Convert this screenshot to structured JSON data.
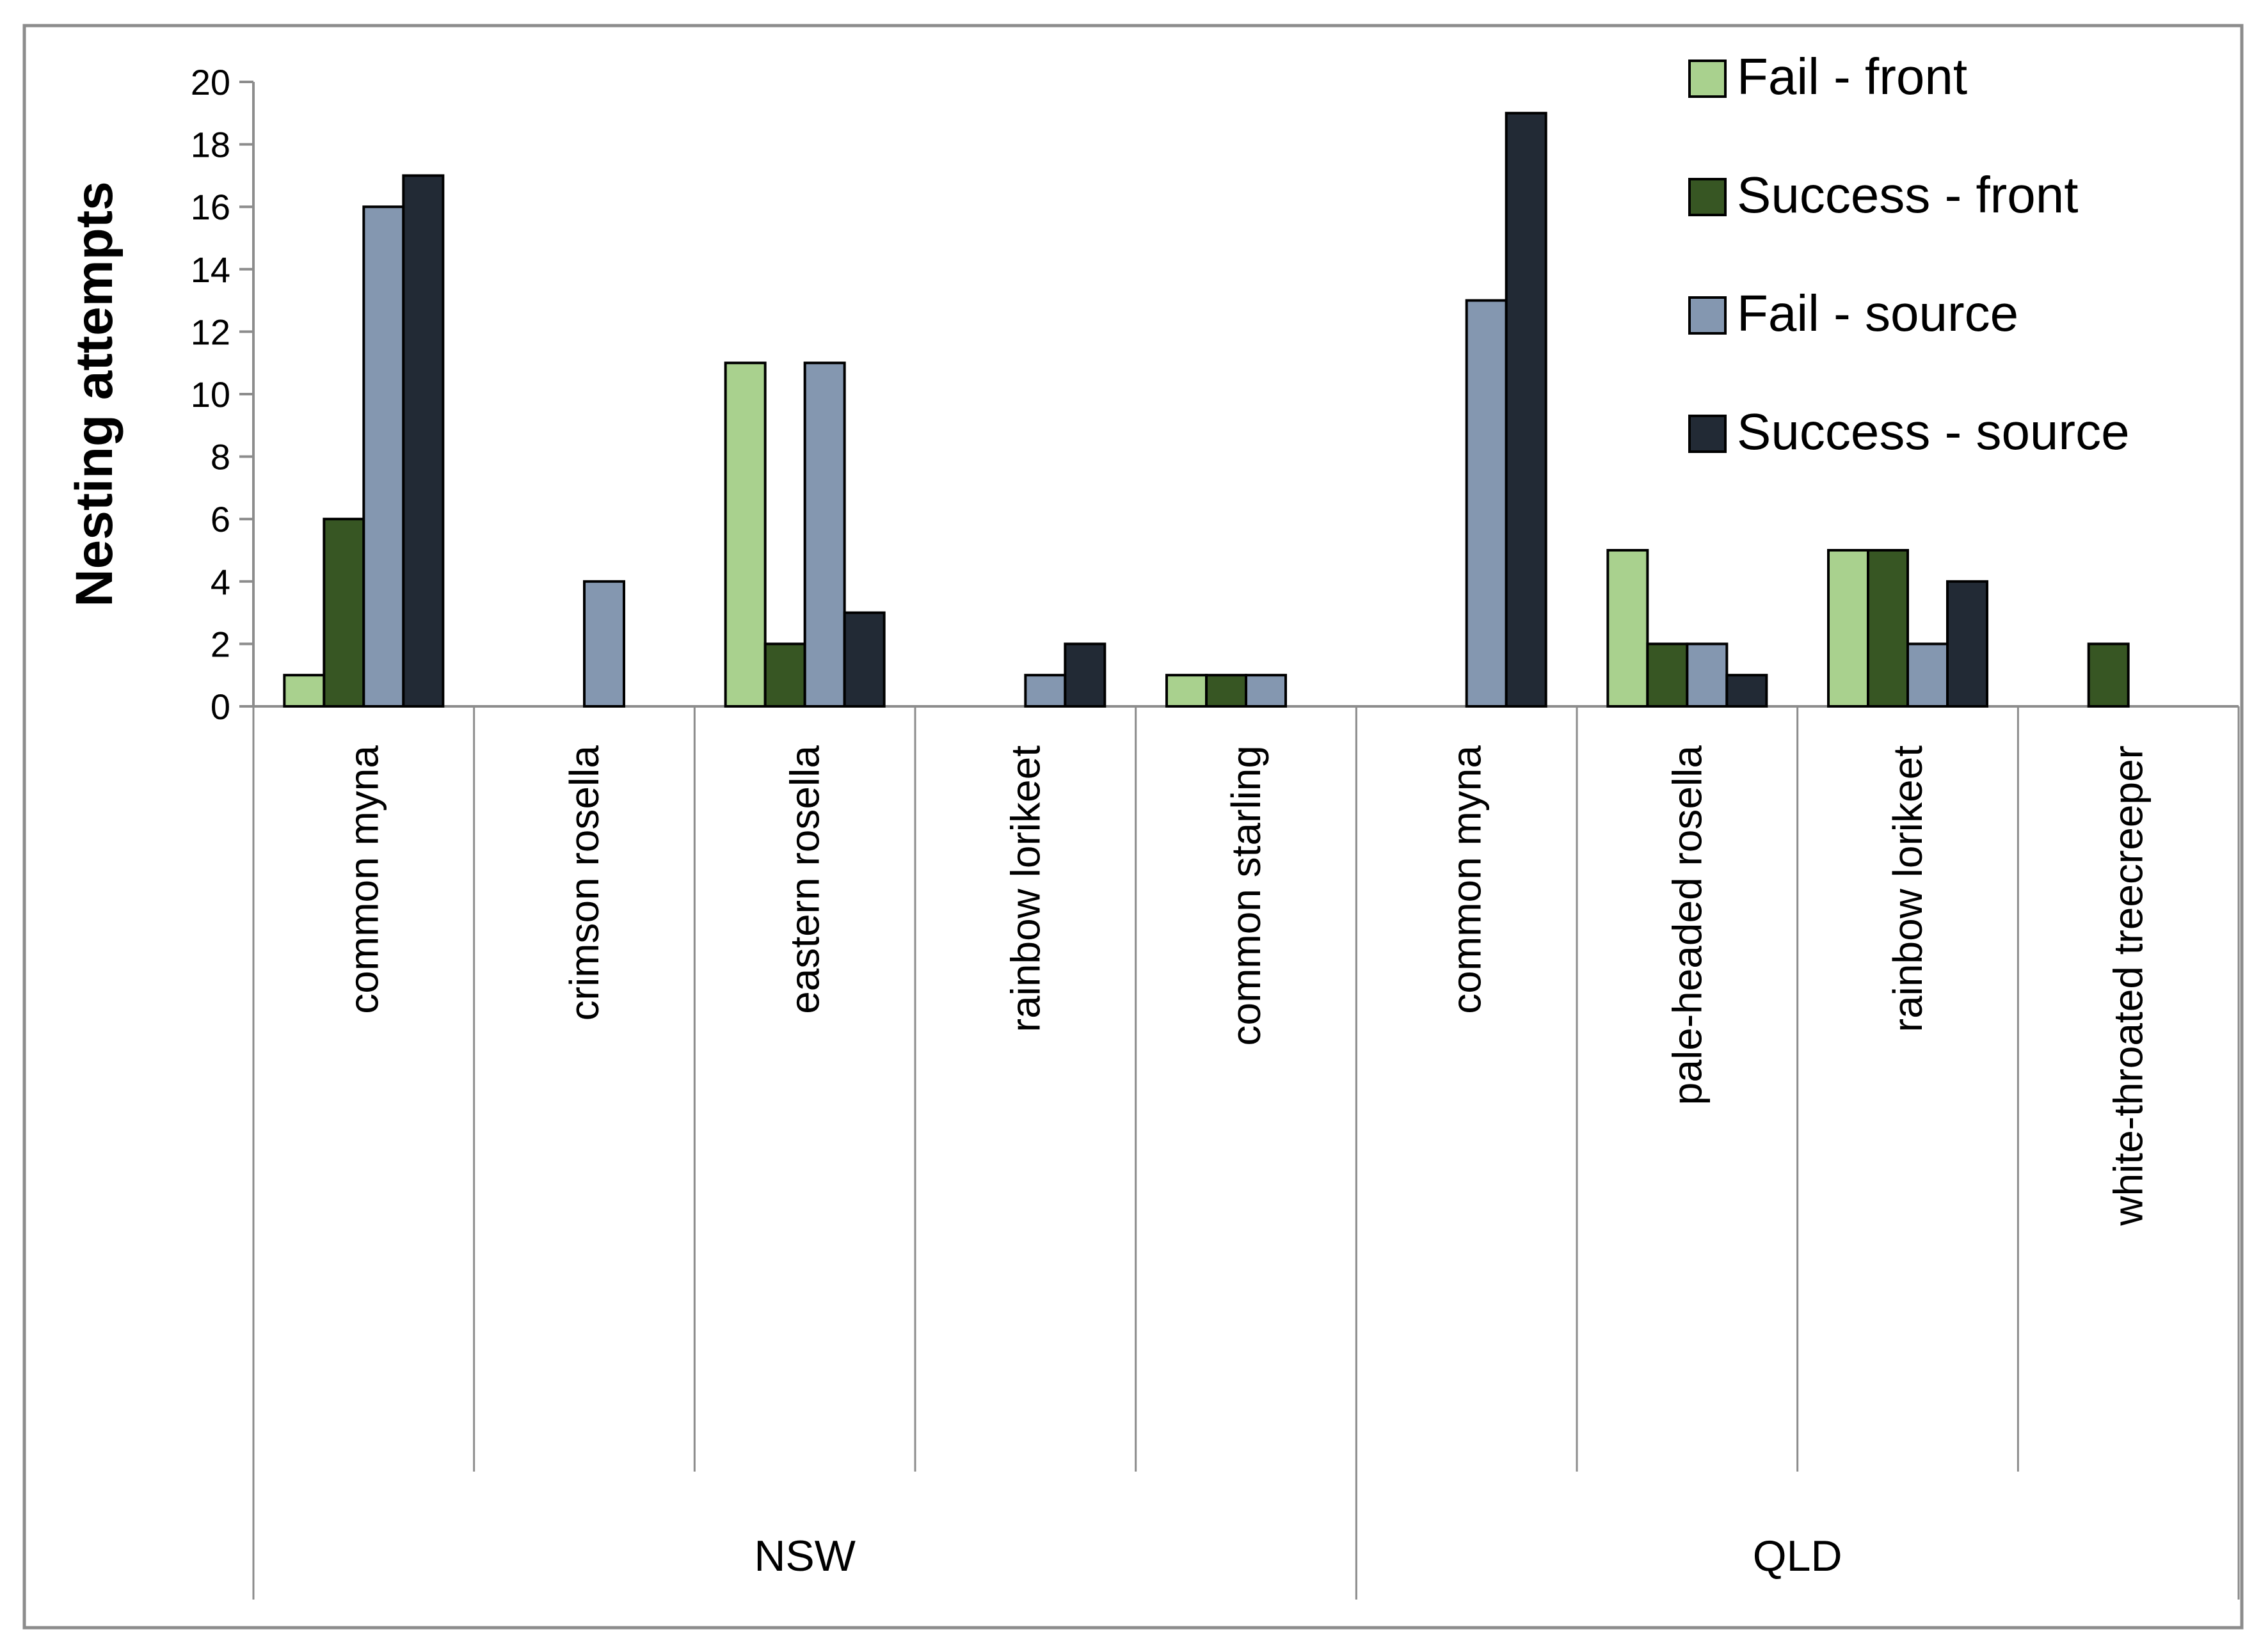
{
  "chart_data": {
    "type": "bar",
    "title": "",
    "xlabel": "",
    "ylabel": "Nesting attempts",
    "ylim": [
      0,
      20
    ],
    "yticks": [
      0,
      2,
      4,
      6,
      8,
      10,
      12,
      14,
      16,
      18,
      20
    ],
    "grid": false,
    "legend_position": "top-right",
    "groups": [
      {
        "name": "NSW",
        "categories": [
          "common myna",
          "crimson rosella",
          "eastern rosella",
          "rainbow lorikeet",
          "common starling"
        ]
      },
      {
        "name": "QLD",
        "categories": [
          "common myna",
          "pale-headed rosella",
          "rainbow lorikeet",
          "white-throated treecreeper"
        ]
      }
    ],
    "categories": [
      "common myna",
      "crimson rosella",
      "eastern rosella",
      "rainbow lorikeet",
      "common starling",
      "common myna",
      "pale-headed rosella",
      "rainbow lorikeet",
      "white-throated treecreeper"
    ],
    "series": [
      {
        "name": "Fail - front",
        "color": "#a9d18e",
        "values": [
          1,
          0,
          11,
          0,
          1,
          0,
          5,
          5,
          0
        ]
      },
      {
        "name": "Success - front",
        "color": "#375623",
        "values": [
          6,
          0,
          2,
          0,
          1,
          0,
          2,
          5,
          2
        ]
      },
      {
        "name": "Fail - source",
        "color": "#8497b0",
        "values": [
          16,
          4,
          11,
          1,
          1,
          13,
          2,
          2,
          0
        ]
      },
      {
        "name": "Success - source",
        "color": "#222a35",
        "values": [
          17,
          0,
          3,
          2,
          0,
          19,
          1,
          4,
          0
        ]
      }
    ]
  }
}
